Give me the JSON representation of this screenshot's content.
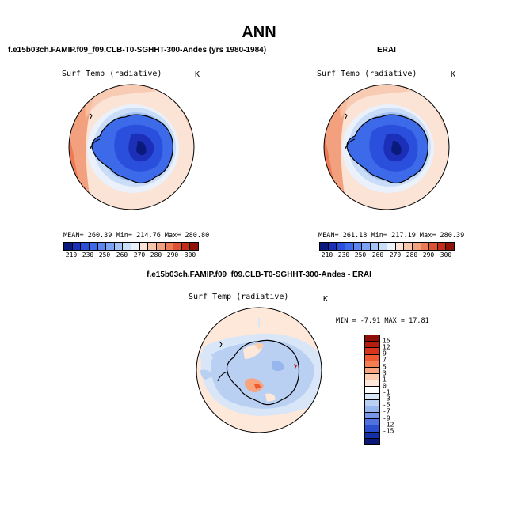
{
  "figure": {
    "title": "ANN"
  },
  "panels": [
    {
      "case": "f.e15b03ch.FAMIP.f09_f09.CLB-T0-SGHHT-300-Andes (yrs 1980-1984)",
      "variable": "Surf Temp (radiative)",
      "units": "K",
      "stats": "MEAN= 260.39   Min= 214.76   Max= 280.80",
      "colorbar_levels": [
        "210",
        "230",
        "250",
        "260",
        "270",
        "280",
        "290",
        "300"
      ]
    },
    {
      "case": "ERAI",
      "variable": "Surf Temp (radiative)",
      "units": "K",
      "stats": "MEAN= 261.18   Min= 217.19   Max= 280.39",
      "colorbar_levels": [
        "210",
        "230",
        "250",
        "260",
        "270",
        "280",
        "290",
        "300"
      ]
    },
    {
      "case": "f.e15b03ch.FAMIP.f09_f09.CLB-T0-SGHHT-300-Andes - ERAI",
      "variable": "Surf Temp (radiative)",
      "units": "K",
      "stats": "MIN =  -7.91  MAX =  17.81",
      "colorbar_levels": [
        "15",
        "12",
        "9",
        "7",
        "5",
        "3",
        "1",
        "0",
        "-1",
        "-3",
        "-5",
        "-7",
        "-9",
        "-12",
        "-15"
      ]
    }
  ],
  "colors": {
    "abs_scale": [
      "#0a1a7a",
      "#1c2fb8",
      "#2b4fdd",
      "#3c6ae8",
      "#5a88ee",
      "#7ba4f2",
      "#a3c3f6",
      "#c9dcf8",
      "#eaf1fb",
      "#fbe4d6",
      "#f8c6ab",
      "#f3a07e",
      "#ec7a56",
      "#de5231",
      "#c42d18",
      "#8e1206"
    ],
    "diff_scale": [
      "#8e0f06",
      "#b51e0e",
      "#d8351c",
      "#ee5a32",
      "#f57d52",
      "#f8a47e",
      "#fbcdb0",
      "#fde8da",
      "#ffffff",
      "#d9e6f8",
      "#b9d0f3",
      "#98b6ee",
      "#7697e8",
      "#4f72de",
      "#2c4fd0",
      "#152fa8",
      "#0a1678"
    ]
  },
  "chart_data": [
    {
      "type": "heatmap",
      "title": "f.e15b03ch.FAMIP.f09_f09.CLB-T0-SGHHT-300-Andes (yrs 1980-1984)",
      "projection": "south polar stereographic",
      "variable": "Surf Temp (radiative)",
      "units": "K",
      "mean": 260.39,
      "min": 214.76,
      "max": 280.8,
      "levels": [
        210,
        230,
        250,
        260,
        270,
        280,
        290,
        300
      ]
    },
    {
      "type": "heatmap",
      "title": "ERAI",
      "projection": "south polar stereographic",
      "variable": "Surf Temp (radiative)",
      "units": "K",
      "mean": 261.18,
      "min": 217.19,
      "max": 280.39,
      "levels": [
        210,
        230,
        250,
        260,
        270,
        280,
        290,
        300
      ]
    },
    {
      "type": "heatmap",
      "title": "f.e15b03ch.FAMIP.f09_f09.CLB-T0-SGHHT-300-Andes - ERAI",
      "projection": "south polar stereographic",
      "variable": "Surf Temp (radiative)",
      "units": "K",
      "min": -7.91,
      "max": 17.81,
      "levels": [
        15,
        12,
        9,
        7,
        5,
        3,
        1,
        0,
        -1,
        -3,
        -5,
        -7,
        -9,
        -12,
        -15
      ]
    }
  ]
}
